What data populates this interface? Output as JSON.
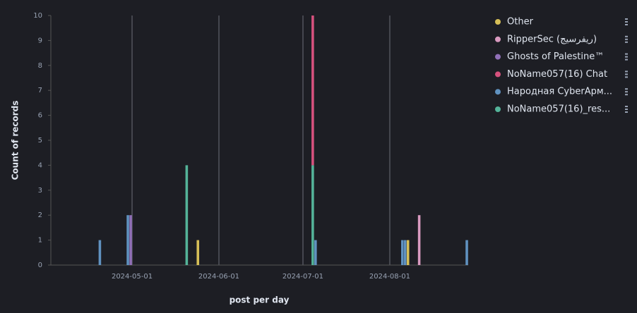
{
  "chart_data": {
    "type": "bar",
    "stacked": true,
    "x_label": "post per day",
    "y_label": "Count of records",
    "x": [
      "2024-04-19",
      "2024-04-29",
      "2024-04-30",
      "2024-05-20",
      "2024-05-24",
      "2024-07-04",
      "2024-07-05",
      "2024-08-05",
      "2024-08-06",
      "2024-08-07",
      "2024-08-11",
      "2024-08-28"
    ],
    "series": [
      {
        "name": "Other",
        "color": "#d6bf57",
        "values": [
          null,
          null,
          null,
          null,
          1,
          null,
          null,
          null,
          null,
          1,
          null,
          null
        ]
      },
      {
        "name": "RipperSec (ريفرسيج)",
        "color": "#d99ac0",
        "values": [
          null,
          null,
          null,
          null,
          null,
          null,
          null,
          null,
          null,
          null,
          2,
          null
        ]
      },
      {
        "name": "Ghosts of Palestine™",
        "color": "#9170b8",
        "values": [
          null,
          null,
          2,
          null,
          null,
          null,
          null,
          null,
          null,
          null,
          null,
          null
        ]
      },
      {
        "name": "NoName057(16) Chat",
        "color": "#d6517d",
        "values": [
          null,
          null,
          null,
          null,
          null,
          6,
          null,
          null,
          null,
          null,
          null,
          null
        ]
      },
      {
        "name": "Народная CyberАрм...",
        "color": "#6092c0",
        "values": [
          1,
          2,
          null,
          null,
          null,
          null,
          1,
          1,
          1,
          null,
          null,
          1
        ]
      },
      {
        "name": "NoName057(16)_res...",
        "color": "#54b399",
        "values": [
          null,
          null,
          null,
          4,
          null,
          4,
          null,
          null,
          null,
          null,
          null,
          null
        ]
      }
    ],
    "xlim": [
      "2024-04-02",
      "2024-08-29"
    ],
    "xticks": [
      "2024-05-01",
      "2024-06-01",
      "2024-07-01",
      "2024-08-01"
    ],
    "ylim": [
      0,
      10
    ],
    "yticks": [
      0,
      1,
      2,
      3,
      4,
      5,
      6,
      7,
      8,
      9,
      10
    ],
    "grid": true,
    "legend": "right"
  }
}
